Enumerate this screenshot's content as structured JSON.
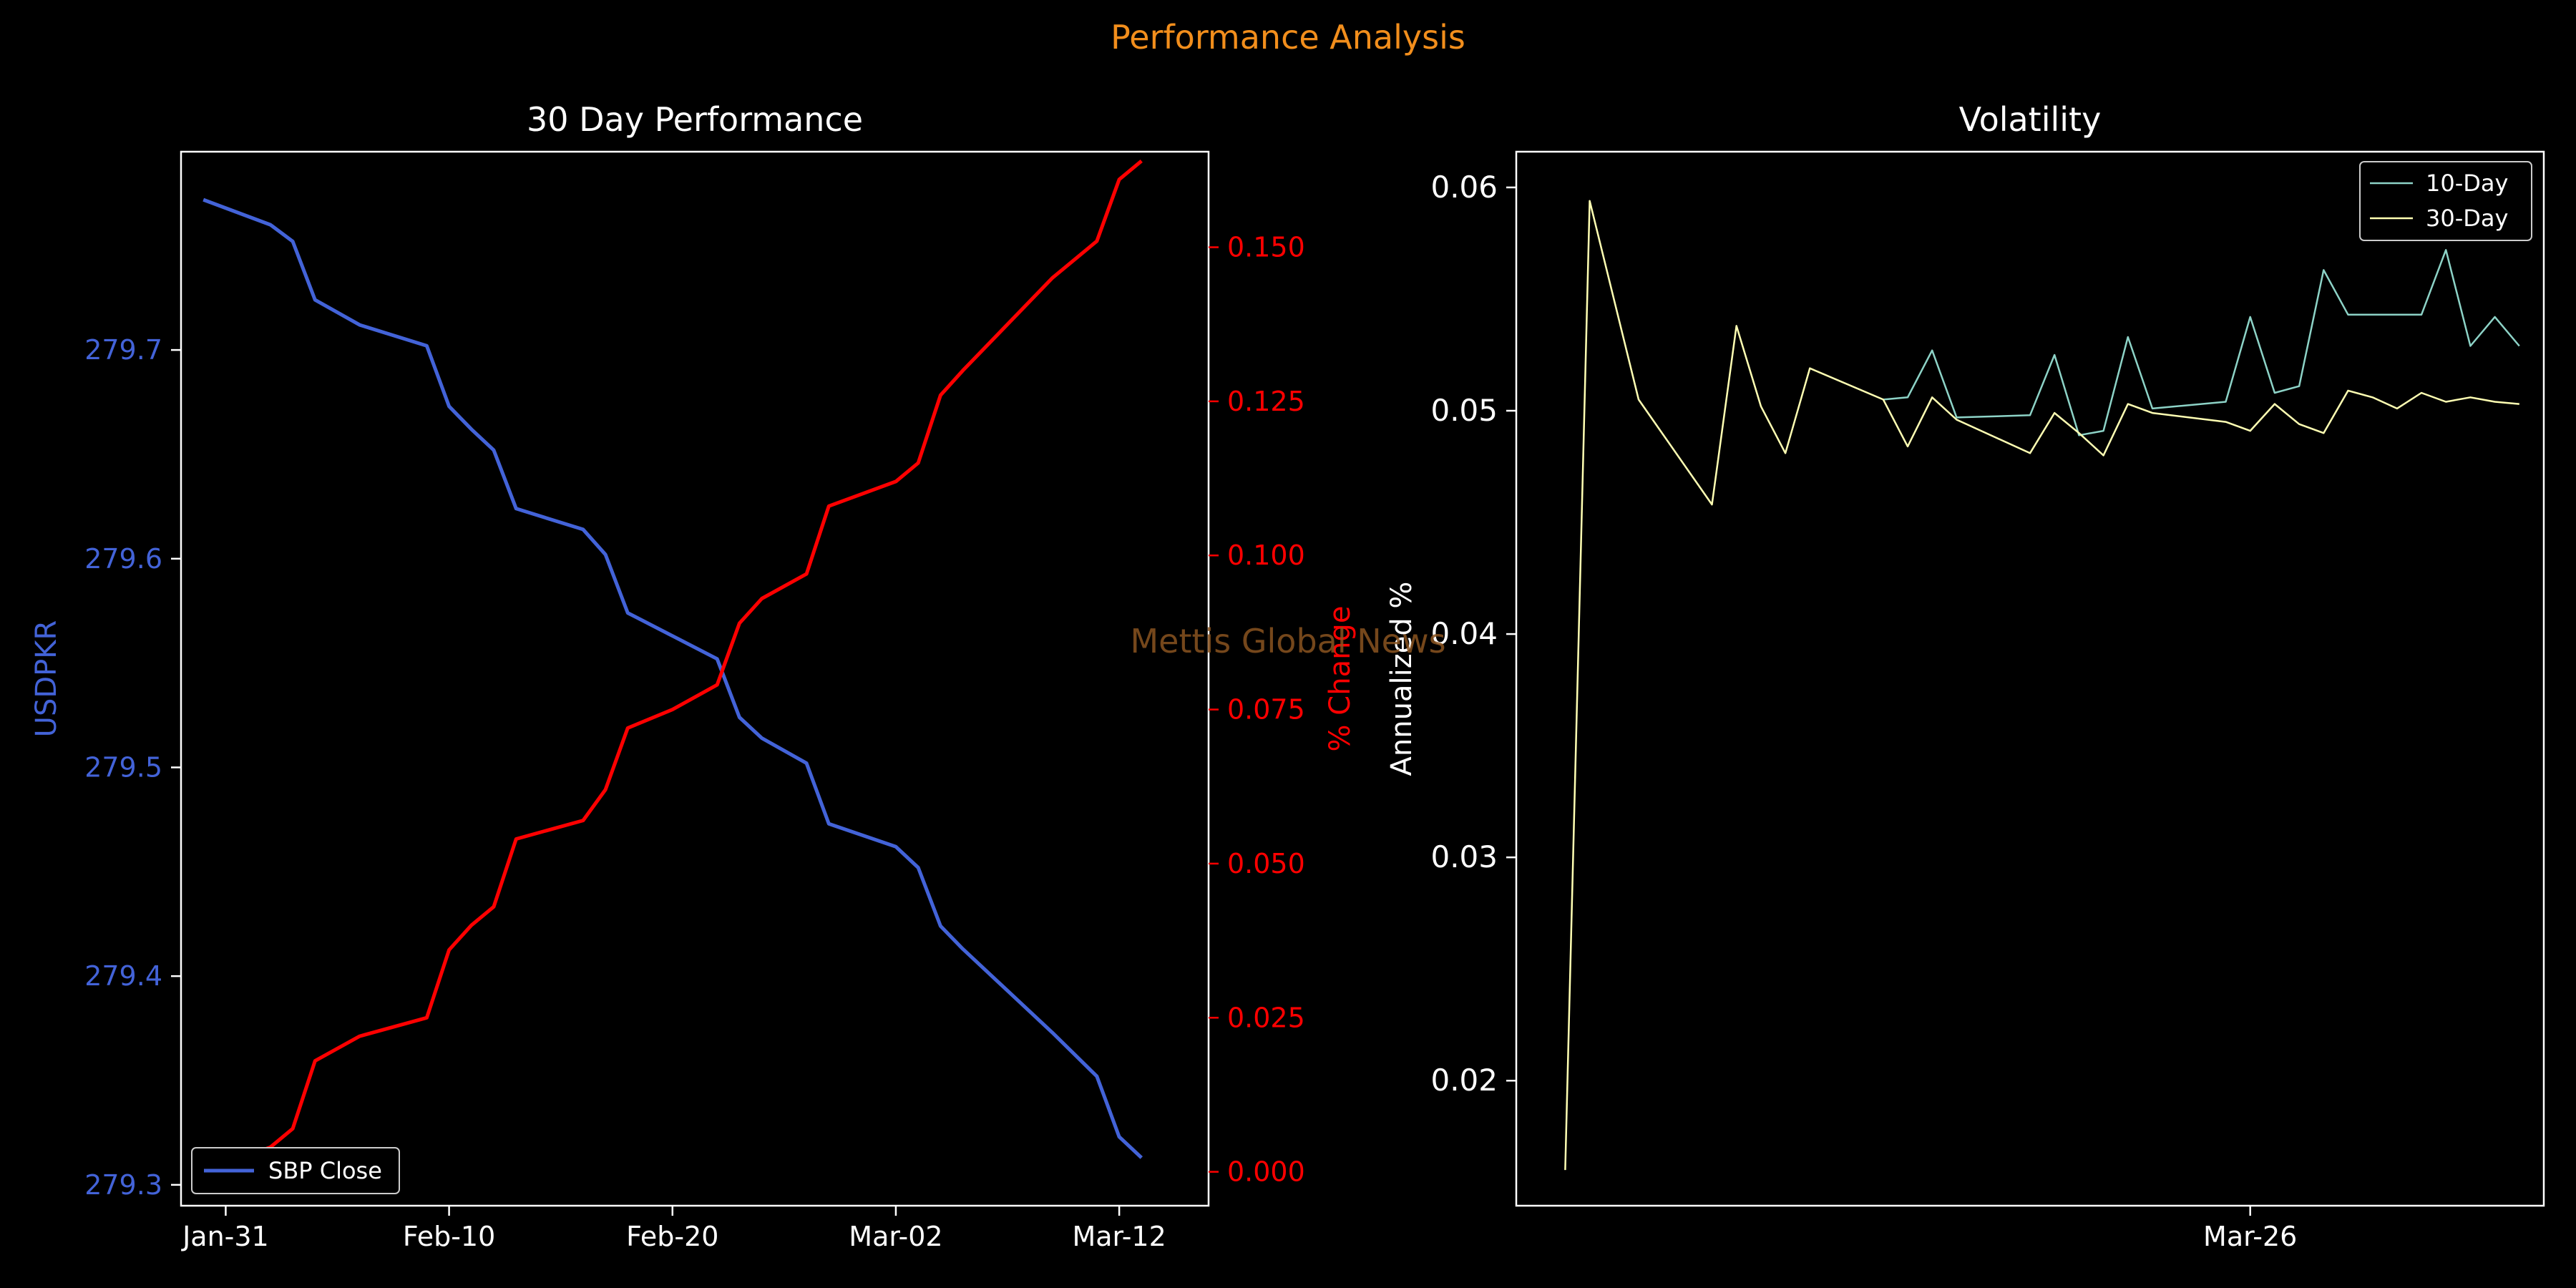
{
  "figure": {
    "suptitle": "Performance Analysis",
    "watermark": "Mettis Global News",
    "colors": {
      "background": "#000000",
      "suptitle": "#f28e1c",
      "watermark": "#8a5420",
      "primary": "#4363d8",
      "secondary": "#ff0000",
      "axis": "#ffffff",
      "vol10": "#8dd3c7",
      "vol30": "#ffffb3"
    }
  },
  "chart_data": [
    {
      "type": "line",
      "title": "30 Day Performance",
      "xlabel": "",
      "ylabel": "USDPKR",
      "y2label": "% Change",
      "xlim": [
        -1,
        45
      ],
      "x_ticks": [
        {
          "x": 1,
          "label": "Jan-31"
        },
        {
          "x": 11,
          "label": "Feb-10"
        },
        {
          "x": 21,
          "label": "Feb-20"
        },
        {
          "x": 31,
          "label": "Mar-02"
        },
        {
          "x": 41,
          "label": "Mar-12"
        }
      ],
      "ylim": [
        279.29,
        279.795
      ],
      "y_ticks": [
        "279.3",
        "279.4",
        "279.5",
        "279.6",
        "279.7"
      ],
      "y2lim": [
        -0.0055,
        0.1655
      ],
      "y2_ticks": [
        "0.000",
        "0.025",
        "0.050",
        "0.075",
        "0.100",
        "0.125",
        "0.150"
      ],
      "legend": {
        "position": "lower-left",
        "entries": [
          "SBP Close"
        ]
      },
      "series": [
        {
          "name": "SBP Close",
          "axis": "left",
          "x": [
            0,
            3,
            4,
            5,
            7,
            10,
            11,
            12,
            13,
            14,
            17,
            18,
            19,
            21,
            23,
            24,
            25,
            27,
            28,
            31,
            32,
            33,
            34,
            38,
            40,
            41,
            42
          ],
          "values": [
            279.772,
            279.76,
            279.752,
            279.724,
            279.712,
            279.702,
            279.673,
            279.662,
            279.652,
            279.624,
            279.614,
            279.602,
            279.574,
            279.563,
            279.552,
            279.524,
            279.514,
            279.502,
            279.473,
            279.462,
            279.452,
            279.424,
            279.413,
            279.373,
            279.352,
            279.323,
            279.313
          ]
        },
        {
          "name": "% Change",
          "axis": "right",
          "x": [
            0,
            3,
            4,
            5,
            7,
            10,
            11,
            12,
            13,
            14,
            17,
            18,
            19,
            21,
            23,
            24,
            25,
            27,
            28,
            31,
            32,
            33,
            34,
            38,
            40,
            41,
            42
          ],
          "values": [
            0.0,
            0.004,
            0.007,
            0.018,
            0.022,
            0.025,
            0.036,
            0.04,
            0.043,
            0.054,
            0.057,
            0.062,
            0.072,
            0.075,
            0.079,
            0.089,
            0.093,
            0.097,
            0.108,
            0.112,
            0.115,
            0.126,
            0.13,
            0.145,
            0.151,
            0.161,
            0.164
          ]
        }
      ]
    },
    {
      "type": "line",
      "title": "Volatility",
      "xlabel": "",
      "ylabel": "Annualized %",
      "xlim": [
        -2,
        40
      ],
      "x_ticks": [
        {
          "x": 28,
          "label": "Mar-26"
        }
      ],
      "ylim": [
        0.0144,
        0.0616
      ],
      "y_ticks": [
        "0.02",
        "0.03",
        "0.04",
        "0.05",
        "0.06"
      ],
      "legend": {
        "position": "upper-right",
        "entries": [
          "10-Day",
          "30-Day"
        ]
      },
      "series": [
        {
          "name": "10-Day",
          "x": [
            13,
            14,
            15,
            16,
            19,
            20,
            21,
            22,
            23,
            24,
            27,
            28,
            29,
            30,
            31,
            32,
            35,
            36,
            37,
            38,
            39
          ],
          "values": [
            0.0505,
            0.0506,
            0.0527,
            0.0497,
            0.0498,
            0.0525,
            0.0489,
            0.0491,
            0.0533,
            0.0501,
            0.0504,
            0.0542,
            0.0508,
            0.0511,
            0.0563,
            0.0543,
            0.0543,
            0.0572,
            0.0529,
            0.0542,
            0.0529
          ]
        },
        {
          "name": "30-Day",
          "x": [
            0,
            1,
            3,
            6,
            7,
            8,
            9,
            10,
            13,
            14,
            15,
            16,
            19,
            20,
            21,
            22,
            23,
            24,
            27,
            28,
            29,
            30,
            31,
            32,
            33,
            34,
            35,
            36,
            37,
            38,
            39
          ],
          "values": [
            0.016,
            0.0594,
            0.0505,
            0.0458,
            0.0538,
            0.0502,
            0.0481,
            0.0519,
            0.0505,
            0.0484,
            0.0506,
            0.0496,
            0.0481,
            0.0499,
            0.049,
            0.048,
            0.0503,
            0.0499,
            0.0495,
            0.0491,
            0.0503,
            0.0494,
            0.049,
            0.0509,
            0.0506,
            0.0501,
            0.0508,
            0.0504,
            0.0506,
            0.0504,
            0.0503
          ]
        }
      ]
    }
  ]
}
